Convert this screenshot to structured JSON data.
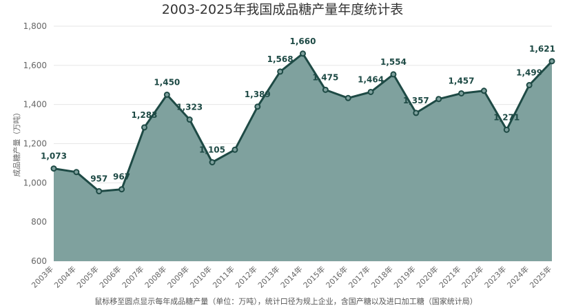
{
  "chart_data": {
    "type": "area",
    "title": "2003-2025年我国成品糖产量年度统计表",
    "ylabel": "成品糖产量（万吨）",
    "xlabel": "",
    "footnote": "鼠标移至圆点显示每年成品糖产量（单位：万吨），统计口径为规上企业，含国产糖以及进口加工糖（国家统计局）",
    "categories": [
      "2003年",
      "2004年",
      "2005年",
      "2006年",
      "2007年",
      "2008年",
      "2009年",
      "2010年",
      "2011年",
      "2012年",
      "2013年",
      "2014年",
      "2015年",
      "2016年",
      "2017年",
      "2018年",
      "2019年",
      "2020年",
      "2021年",
      "2022年",
      "2023年",
      "2024年",
      "2025年"
    ],
    "values": [
      1073,
      1055,
      957,
      967,
      1283,
      1450,
      1323,
      1105,
      1169,
      1389,
      1568,
      1660,
      1475,
      1433,
      1464,
      1554,
      1357,
      1428,
      1457,
      1470,
      1271,
      1499,
      1621
    ],
    "data_labels": [
      "1,073",
      "",
      "957",
      "967",
      "1,283",
      "1,450",
      "1,323",
      "1,105",
      "",
      "1,389",
      "1,568",
      "1,660",
      "1,475",
      "",
      "1,464",
      "1,554",
      "1,357",
      "",
      "1,457",
      "",
      "1,271",
      "1,499",
      "1,621"
    ],
    "ylim": [
      600,
      1800
    ],
    "yticks": [
      "600",
      "800",
      "1,000",
      "1,200",
      "1,400",
      "1,600",
      "1,800"
    ],
    "grid": true,
    "colors": {
      "fill": "#7fa19e",
      "line": "#1e4a45",
      "label": "#1e4a45",
      "grid": "#e6e6e6"
    }
  }
}
